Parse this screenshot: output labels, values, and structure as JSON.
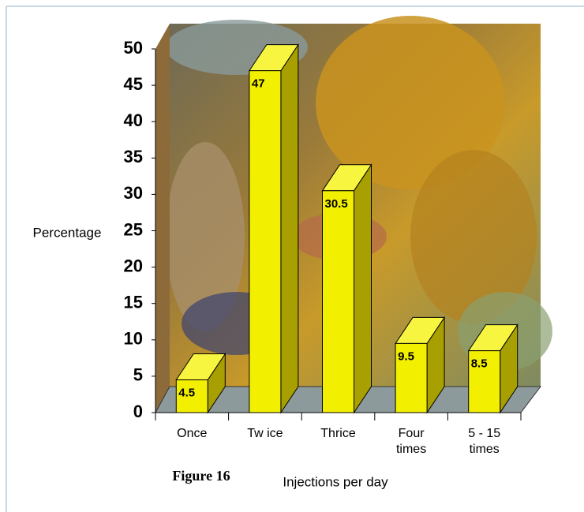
{
  "chart_data": {
    "type": "bar",
    "title": "Figure 16",
    "x_label": "Injections per day",
    "y_label": "Percentage",
    "categories": [
      "Once",
      "Tw ice",
      "Thrice",
      "Four times",
      "5 - 15 times"
    ],
    "values": [
      4.5,
      47,
      30.5,
      9.5,
      8.5
    ],
    "color": "#f2ef00",
    "ylim": [
      0,
      50
    ],
    "yticks": [
      0,
      5,
      10,
      15,
      20,
      25,
      30,
      35,
      40,
      45,
      50
    ]
  }
}
